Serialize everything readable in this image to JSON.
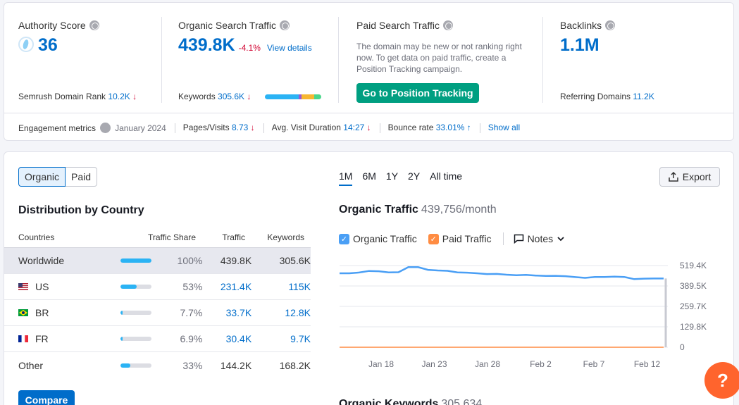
{
  "metrics": {
    "authority": {
      "title": "Authority Score",
      "value": "36",
      "sub_label": "Semrush Domain Rank",
      "sub_value": "10.2K",
      "sub_arrow": "↓"
    },
    "organic": {
      "title": "Organic Search Traffic",
      "value": "439.8K",
      "change": "-4.1%",
      "link": "View details",
      "sub_label": "Keywords",
      "sub_value": "305.6K",
      "sub_arrow": "↓"
    },
    "paid": {
      "title": "Paid Search Traffic",
      "message": "The domain may be new or not ranking right now. To get data on paid traffic, create a Position Tracking campaign.",
      "cta": "Go to Position Tracking"
    },
    "backlinks": {
      "title": "Backlinks",
      "value": "1.1M",
      "sub_label": "Referring Domains",
      "sub_value": "11.2K"
    }
  },
  "engagement": {
    "label": "Engagement metrics",
    "date": "January 2024",
    "pages_label": "Pages/Visits",
    "pages_value": "8.73",
    "pages_arrow": "↓",
    "duration_label": "Avg. Visit Duration",
    "duration_value": "14:27",
    "duration_arrow": "↓",
    "bounce_label": "Bounce rate",
    "bounce_value": "33.01%",
    "bounce_arrow": "↑",
    "show_all": "Show all"
  },
  "toggle": {
    "organic": "Organic",
    "paid": "Paid"
  },
  "distribution": {
    "title": "Distribution by Country",
    "headers": {
      "country": "Countries",
      "share": "Traffic Share",
      "traffic": "Traffic",
      "keywords": "Keywords"
    },
    "rows": [
      {
        "name": "Worldwide",
        "share": "100%",
        "share_fraction": 1.0,
        "traffic": "439.8K",
        "keywords": "305.6K"
      },
      {
        "name": "US",
        "share": "53%",
        "share_fraction": 0.53,
        "traffic": "231.4K",
        "keywords": "115K"
      },
      {
        "name": "BR",
        "share": "7.7%",
        "share_fraction": 0.077,
        "traffic": "33.7K",
        "keywords": "12.8K"
      },
      {
        "name": "FR",
        "share": "6.9%",
        "share_fraction": 0.069,
        "traffic": "30.4K",
        "keywords": "9.7K"
      },
      {
        "name": "Other",
        "share": "33%",
        "share_fraction": 0.33,
        "traffic": "144.2K",
        "keywords": "168.2K"
      }
    ],
    "compare": "Compare"
  },
  "ranges": [
    "1M",
    "6M",
    "1Y",
    "2Y",
    "All time"
  ],
  "export_label": "Export",
  "organic_traffic": {
    "title": "Organic Traffic",
    "value": "439,756/month"
  },
  "legend": {
    "organic": "Organic Traffic",
    "paid": "Paid Traffic",
    "notes": "Notes"
  },
  "organic_keywords": {
    "title": "Organic Keywords",
    "value": "305,634"
  },
  "help_label": "?",
  "colors": {
    "accent": "#006dca",
    "organic_line": "#4a9ff5",
    "paid_line": "#ff8c42",
    "cta": "#009f81"
  },
  "chart_data": {
    "type": "line",
    "x_ticks": [
      "Jan 18",
      "Jan 23",
      "Jan 28",
      "Feb 2",
      "Feb 7",
      "Feb 12"
    ],
    "y_ticks": [
      "519.4K",
      "389.5K",
      "259.7K",
      "129.8K",
      "0"
    ],
    "ylim": [
      0,
      519400
    ],
    "series": [
      {
        "name": "Organic Traffic",
        "values": [
          470000,
          470000,
          475000,
          485000,
          483000,
          476000,
          477000,
          509000,
          509000,
          492000,
          488000,
          486000,
          476000,
          474000,
          470000,
          465000,
          466000,
          461000,
          458000,
          460000,
          456000,
          453000,
          454000,
          452000,
          446000,
          441000,
          447000,
          447000,
          449000,
          447000,
          433000,
          436000,
          437000,
          437000
        ]
      },
      {
        "name": "Paid Traffic",
        "values": [
          0,
          0,
          0,
          0,
          0,
          0,
          0,
          0,
          0,
          0,
          0,
          0,
          0,
          0,
          0,
          0,
          0,
          0,
          0,
          0,
          0,
          0,
          0,
          0,
          0,
          0,
          0,
          0,
          0,
          0,
          0,
          0,
          0,
          0
        ]
      }
    ]
  }
}
